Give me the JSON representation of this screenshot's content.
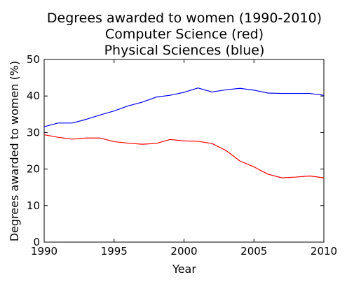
{
  "chart_data": {
    "type": "line",
    "title_lines": [
      "Degrees awarded to women (1990-2010)",
      "Computer Science (red)",
      "Physical Sciences (blue)"
    ],
    "xlabel": "Year",
    "ylabel": "Degrees awarded to women (%)",
    "xlim": [
      1990,
      2010
    ],
    "ylim": [
      0,
      50
    ],
    "xticks": [
      1990,
      1995,
      2000,
      2005,
      2010
    ],
    "yticks": [
      0,
      10,
      20,
      30,
      40,
      50
    ],
    "grid": false,
    "x": [
      1990,
      1991,
      1992,
      1993,
      1994,
      1995,
      1996,
      1997,
      1998,
      1999,
      2000,
      2001,
      2002,
      2003,
      2004,
      2005,
      2006,
      2007,
      2008,
      2009,
      2010
    ],
    "series": [
      {
        "name": "Computer Science",
        "color": "#ff0000",
        "values": [
          29.4,
          28.7,
          28.2,
          28.5,
          28.5,
          27.5,
          27.1,
          26.8,
          27.0,
          28.1,
          27.7,
          27.6,
          27.0,
          25.1,
          22.2,
          20.6,
          18.6,
          17.6,
          17.8,
          18.1,
          17.6
        ]
      },
      {
        "name": "Physical Sciences",
        "color": "#0000ff",
        "values": [
          31.6,
          32.6,
          32.6,
          33.6,
          34.8,
          35.9,
          37.3,
          38.3,
          39.7,
          40.2,
          41.0,
          42.2,
          41.1,
          41.7,
          42.1,
          41.6,
          40.8,
          40.7,
          40.7,
          40.7,
          40.2
        ]
      }
    ]
  }
}
